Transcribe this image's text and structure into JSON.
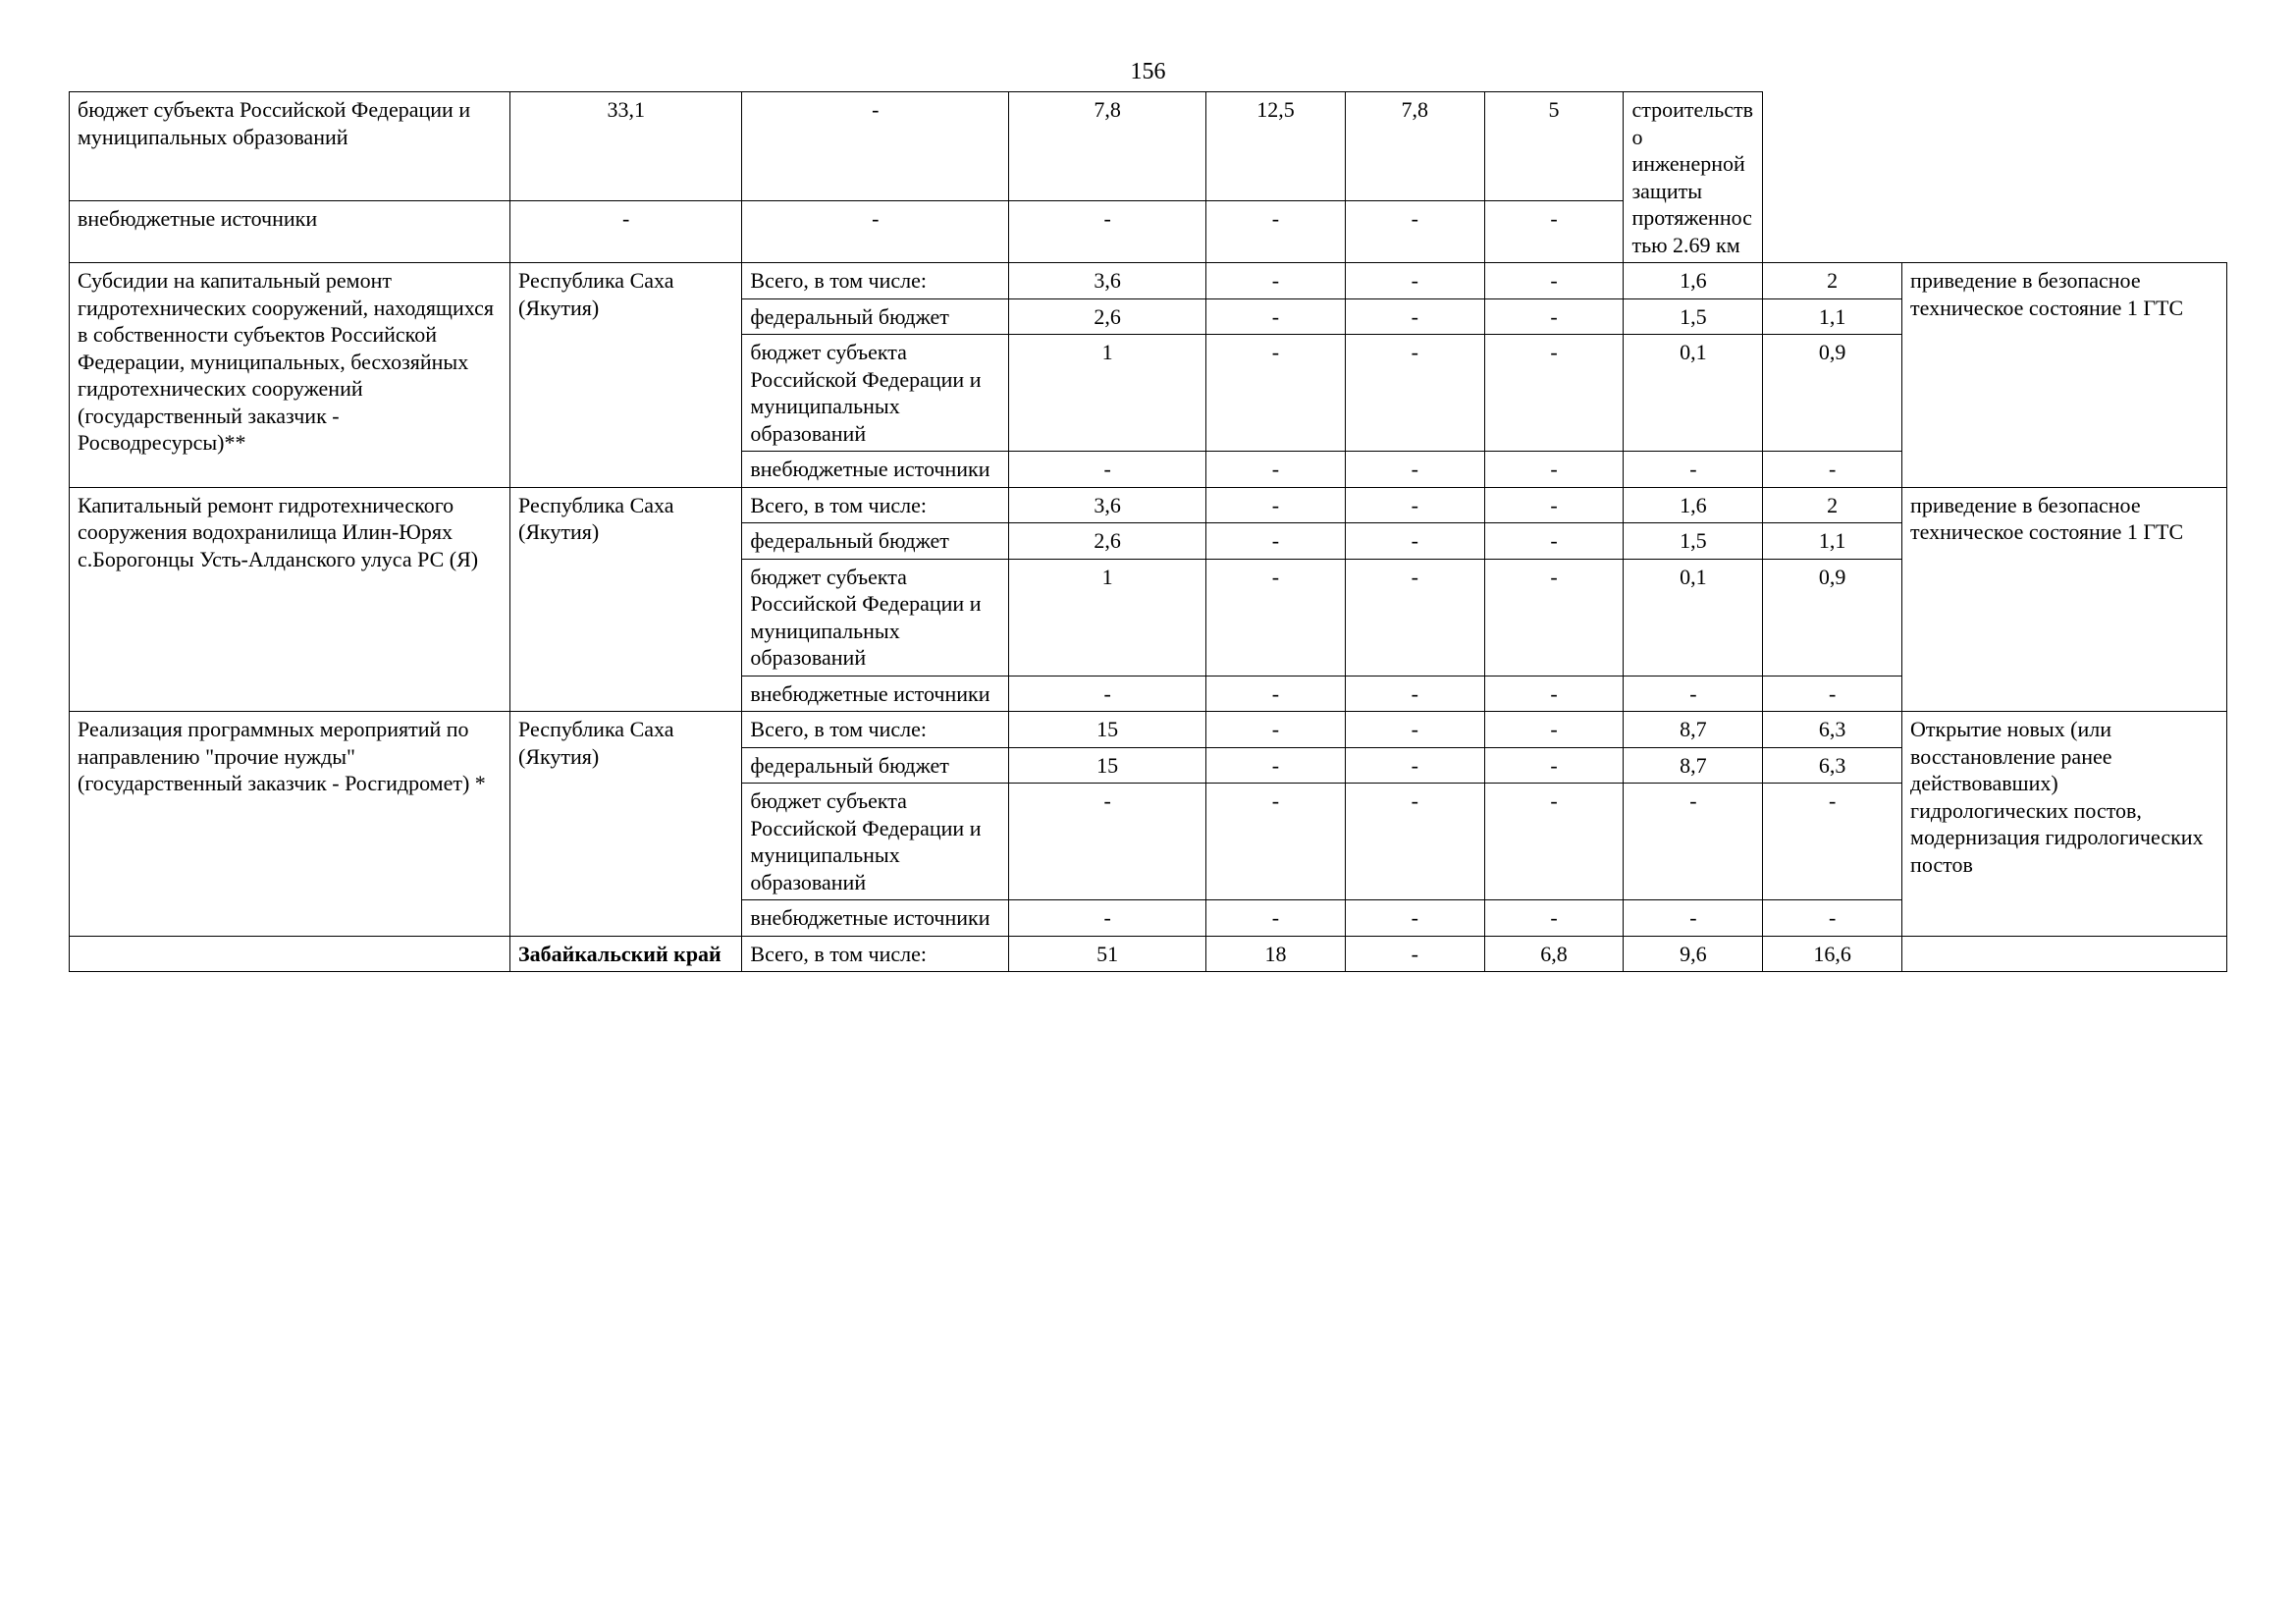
{
  "page_number": "156",
  "budget_labels": {
    "total": "Всего, в том числе:",
    "federal": "федеральный бюджет",
    "subject": "бюджет субъекта Российской Федерации и муниципальных образований",
    "extra": "внебюджетные источники"
  },
  "groups": [
    {
      "desc": "",
      "region": "",
      "note": "строительство инженерной защиты протяженностью 2.69 км",
      "show_desc": false,
      "show_region": false,
      "rows": [
        {
          "label_key": "subject",
          "vals": [
            "33,1",
            "-",
            "7,8",
            "12,5",
            "7,8",
            "5"
          ]
        },
        {
          "label_key": "extra",
          "vals": [
            "-",
            "-",
            "-",
            "-",
            "-",
            "-"
          ]
        }
      ]
    },
    {
      "desc": "Субсидии на капитальный ремонт гидротехнических сооружений, находящихся в собственности субъектов Российской Федерации, муниципальных, бесхозяйных гидротехнических сооружений (государственный заказчик - Росводресурсы)**",
      "region": "Республика Саха (Якутия)",
      "note": "приведение в безопасное техническое состояние 1 ГТС",
      "show_desc": true,
      "show_region": true,
      "rows": [
        {
          "label_key": "total",
          "vals": [
            "3,6",
            "-",
            "-",
            "-",
            "1,6",
            "2"
          ]
        },
        {
          "label_key": "federal",
          "vals": [
            "2,6",
            "-",
            "-",
            "-",
            "1,5",
            "1,1"
          ]
        },
        {
          "label_key": "subject",
          "vals": [
            "1",
            "-",
            "-",
            "-",
            "0,1",
            "0,9"
          ]
        },
        {
          "label_key": "extra",
          "vals": [
            "-",
            "-",
            "-",
            "-",
            "-",
            "-"
          ]
        }
      ]
    },
    {
      "desc": "Капитальный ремонт гидротехнического сооружения водохранилища Илин-Юрях с.Борогонцы Усть-Алданского улуса РС (Я)",
      "region": "Республика Саха (Якутия)",
      "note": "приведение в безопасное техническое состояние 1 ГТС",
      "show_desc": true,
      "show_region": true,
      "rows": [
        {
          "label_key": "total",
          "vals": [
            "3,6",
            "-",
            "-",
            "-",
            "1,6",
            "2"
          ]
        },
        {
          "label_key": "federal",
          "vals": [
            "2,6",
            "-",
            "-",
            "-",
            "1,5",
            "1,1"
          ]
        },
        {
          "label_key": "subject",
          "vals": [
            "1",
            "-",
            "-",
            "-",
            "0,1",
            "0,9"
          ]
        },
        {
          "label_key": "extra",
          "vals": [
            "-",
            "-",
            "-",
            "-",
            "-",
            "-"
          ]
        }
      ]
    },
    {
      "desc": "Реализация программных мероприятий по направлению \"прочие нужды\" (государственный заказчик - Росгидромет) *",
      "region": "Республика Саха (Якутия)",
      "note": "Открытие новых (или восстановление ранее действовавших) гидрологических постов, модернизация гидрологических постов",
      "show_desc": true,
      "show_region": true,
      "rows": [
        {
          "label_key": "total",
          "vals": [
            "15",
            "-",
            "-",
            "-",
            "8,7",
            "6,3"
          ]
        },
        {
          "label_key": "federal",
          "vals": [
            "15",
            "-",
            "-",
            "-",
            "8,7",
            "6,3"
          ]
        },
        {
          "label_key": "subject",
          "vals": [
            "-",
            "-",
            "-",
            "-",
            "-",
            "-"
          ]
        },
        {
          "label_key": "extra",
          "vals": [
            "-",
            "-",
            "-",
            "-",
            "-",
            "-"
          ]
        }
      ]
    },
    {
      "desc": "",
      "region": "Забайкальский край",
      "region_bold": true,
      "note": "",
      "show_desc": true,
      "show_region": true,
      "rows": [
        {
          "label_key": "total",
          "vals": [
            "51",
            "18",
            "-",
            "6,8",
            "9,6",
            "16,6"
          ],
          "middle": true
        }
      ]
    }
  ]
}
